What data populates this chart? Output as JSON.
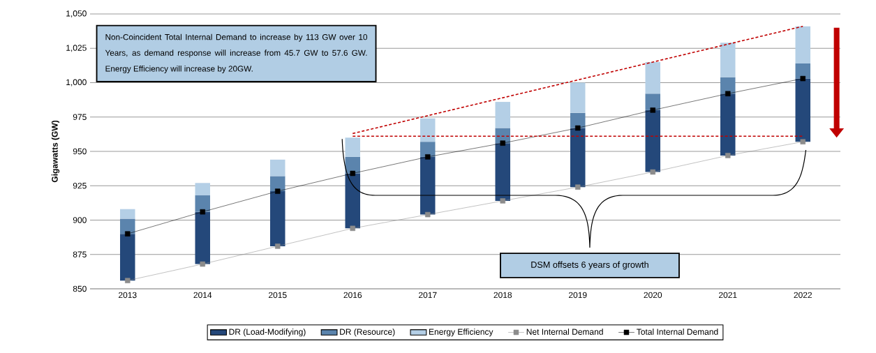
{
  "chart_data": {
    "type": "bar",
    "ylabel": "Gigawatts (GW)",
    "x": [
      2013,
      2014,
      2015,
      2016,
      2017,
      2018,
      2019,
      2020,
      2021,
      2022
    ],
    "series": [
      {
        "name": "DR (Load-Modifying)",
        "color": "#24487a",
        "base": [
          856,
          868,
          881,
          894,
          904,
          914,
          924,
          935,
          947,
          957
        ],
        "values": [
          34,
          38,
          40,
          40,
          42,
          42,
          43,
          45,
          45,
          46
        ]
      },
      {
        "name": "DR (Resource)",
        "color": "#5b84ad",
        "base": [
          890,
          906,
          921,
          934,
          946,
          956,
          967,
          980,
          992,
          1003
        ],
        "values": [
          11,
          12,
          11,
          12,
          11,
          11,
          11,
          12,
          12,
          11
        ]
      },
      {
        "name": "Energy Efficiency",
        "color": "#b4cfe6",
        "base": [
          901,
          918,
          932,
          946,
          957,
          967,
          978,
          992,
          1004,
          1014
        ],
        "values": [
          7,
          9,
          12,
          14,
          17,
          19,
          22,
          23,
          25,
          27
        ]
      },
      {
        "name": "Net Internal Demand",
        "type": "line",
        "color": "#8c8c8c",
        "marker": "square",
        "values": [
          856,
          868,
          881,
          894,
          904,
          914,
          924,
          935,
          947,
          957
        ]
      },
      {
        "name": "Total Internal Demand",
        "type": "line",
        "color": "#000000",
        "marker": "square",
        "values": [
          890,
          906,
          921,
          934,
          946,
          956,
          967,
          980,
          992,
          1003
        ]
      },
      {
        "type": "line",
        "color": "#c00000",
        "line_style": "dashed",
        "marker": "none",
        "values": [
          null,
          null,
          null,
          963,
          976,
          989,
          1002,
          1015,
          1028,
          1041
        ]
      },
      {
        "type": "line",
        "color": "#c00000",
        "line_style": "dashed",
        "marker": "none",
        "values": [
          null,
          null,
          null,
          961,
          961,
          961,
          961,
          961,
          961,
          961
        ]
      }
    ],
    "xlim": [
      2012.5,
      2022.5
    ],
    "xticks": [
      2013,
      2014,
      2015,
      2016,
      2017,
      2018,
      2019,
      2020,
      2021,
      2022
    ],
    "ylim": [
      850,
      1050
    ],
    "yticks": [
      850,
      875,
      900,
      925,
      950,
      975,
      {
        "value": 1000,
        "label": "1,000"
      },
      {
        "value": 1025,
        "label": "1,025"
      },
      {
        "value": 1050,
        "label": "1,050"
      }
    ],
    "grid": "y",
    "legend": "bottom",
    "annotations": [
      "Non-Coincident Total Internal Demand to increase by 113 GW over 10 Years, as demand response will increase from 45.7 GW to 57.6 GW. Energy Efficiency will increase by 20GW.",
      "DSM offsets 6 years of growth"
    ]
  }
}
